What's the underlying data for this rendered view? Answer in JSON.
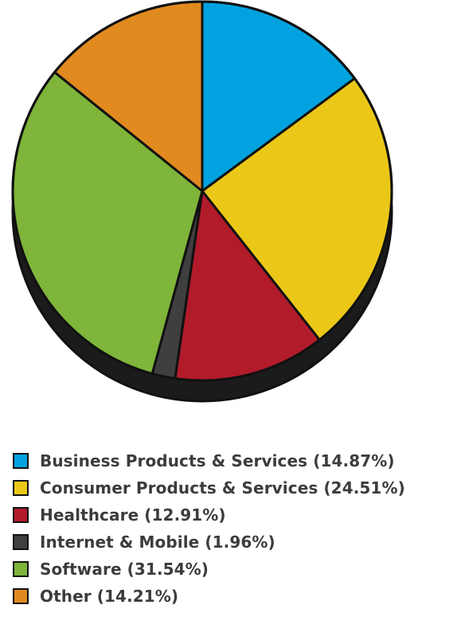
{
  "chart_data": {
    "type": "pie",
    "title": "",
    "legend_position": "bottom",
    "series": [
      {
        "name": "Business Products & Services",
        "value": 14.87,
        "color": "#00a3df",
        "legend_label": "Business Products & Services (14.87%)"
      },
      {
        "name": "Consumer Products & Services",
        "value": 24.51,
        "color": "#ebc817",
        "legend_label": "Consumer Products & Services (24.51%)"
      },
      {
        "name": "Healthcare",
        "value": 12.91,
        "color": "#b21b2a",
        "legend_label": "Healthcare (12.91%)"
      },
      {
        "name": "Internet & Mobile",
        "value": 1.96,
        "color": "#3f3f3f",
        "legend_label": "Internet & Mobile (1.96%)"
      },
      {
        "name": "Software",
        "value": 31.54,
        "color": "#7eb53a",
        "legend_label": "Software (31.54%)"
      },
      {
        "name": "Other",
        "value": 14.21,
        "color": "#e18a1f",
        "legend_label": "Other (14.21%)"
      }
    ]
  }
}
